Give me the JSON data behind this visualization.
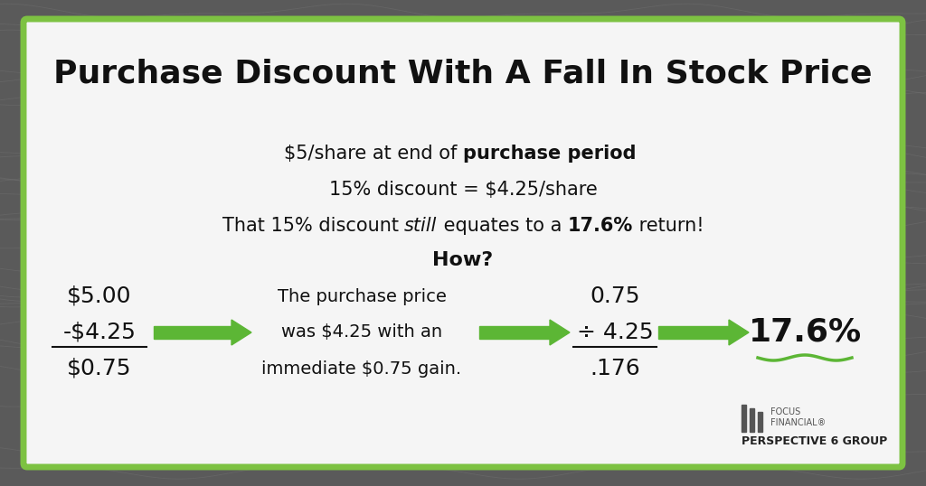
{
  "title": "Purchase Discount With A Fall In Stock Price",
  "bg_outer": "#5a5a5a",
  "bg_card": "#f5f5f5",
  "border_color": "#7dc242",
  "title_color": "#111111",
  "text_color": "#111111",
  "green_arrow_color": "#5cb635",
  "line1_normal": "$5/share at end of ",
  "line1_bold": "purchase period",
  "line2": "15% discount = $4.25/share",
  "line3_prefix": "That 15% discount ",
  "line3_italic": "still",
  "line3_mid": " equates to a ",
  "line3_bold": "17.6%",
  "line3_suffix": " return!",
  "how_label": "How?",
  "math1_line1": "$5.00",
  "math1_line2": "-$4.25",
  "math1_line3": "$0.75",
  "math2_line1": "The purchase price",
  "math2_line2": "was $4.25 with an",
  "math2_line3": "immediate $0.75 gain.",
  "math3_line1": "0.75",
  "math3_line2": "÷ 4.25",
  "math3_line3": ".176",
  "result": "17.6%",
  "logo_text1": "FOCUS",
  "logo_text2": "FINANCIAL®",
  "logo_sub": "PERSPECTIVE 6 GROUP"
}
